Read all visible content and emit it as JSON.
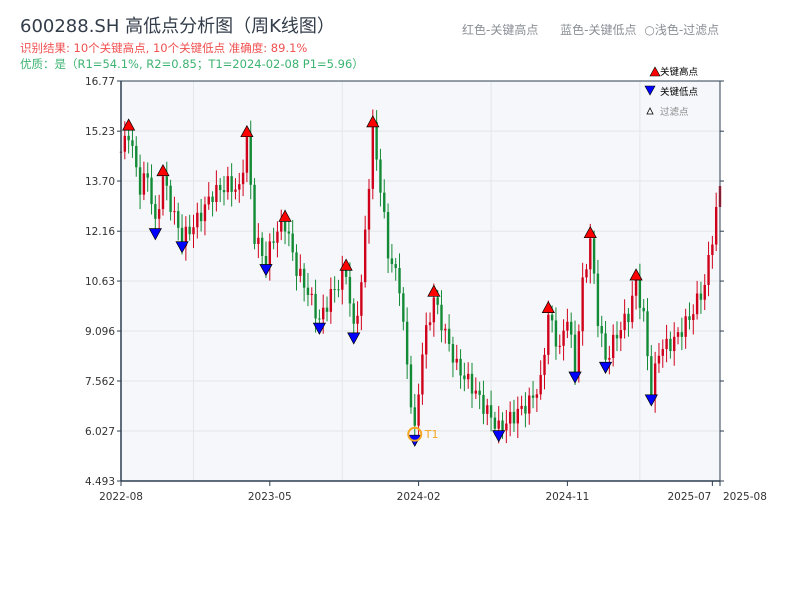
{
  "title": "600288.SH 高低点分析图（周K线图）",
  "result_line": "识别结果: 10个关键高点, 10个关键低点   准确度: 89.1%",
  "quality_line": "优质：是（R1=54.1%, R2=0.85；T1=2024-02-08 P1=5.96）",
  "hint": {
    "red": "红色-关键高点",
    "blue": "蓝色-关键低点",
    "light": "○浅色-过滤点"
  },
  "chart_data": {
    "type": "candlestick",
    "title": "600288.SH 高低点分析图（周K线图）",
    "ylim": [
      4.493,
      16.77
    ],
    "yticks": [
      "4.493",
      "6.027",
      "7.562",
      "9.096",
      "10.63",
      "12.16",
      "13.70",
      "15.23",
      "16.77"
    ],
    "ytick_values": [
      4.493,
      6.027,
      7.562,
      9.096,
      10.63,
      12.16,
      13.7,
      15.23,
      16.77
    ],
    "xticks": [
      {
        "label": "2022-08",
        "week": 0
      },
      {
        "label": "2023-05",
        "week": 39
      },
      {
        "label": "2024-02",
        "week": 78
      },
      {
        "label": "2024-11",
        "week": 117
      },
      {
        "label": "2025-07",
        "week": 155
      },
      {
        "label": "2025-08",
        "week": 157
      }
    ],
    "weeks": 158,
    "price_path_estimated": [
      [
        0,
        14.6
      ],
      [
        2,
        15.2
      ],
      [
        5,
        13.5
      ],
      [
        7,
        13.9
      ],
      [
        9,
        12.3
      ],
      [
        11,
        13.8
      ],
      [
        14,
        12.6
      ],
      [
        16,
        11.9
      ],
      [
        20,
        12.5
      ],
      [
        24,
        13.3
      ],
      [
        28,
        13.6
      ],
      [
        31,
        13.4
      ],
      [
        33,
        15.0
      ],
      [
        35,
        12.0
      ],
      [
        38,
        11.2
      ],
      [
        40,
        12.0
      ],
      [
        43,
        12.4
      ],
      [
        46,
        11.0
      ],
      [
        49,
        10.3
      ],
      [
        52,
        9.4
      ],
      [
        55,
        10.2
      ],
      [
        59,
        10.9
      ],
      [
        61,
        9.1
      ],
      [
        63,
        10.5
      ],
      [
        66,
        15.3
      ],
      [
        68,
        13.5
      ],
      [
        70,
        11.5
      ],
      [
        73,
        10.5
      ],
      [
        75,
        8.0
      ],
      [
        77,
        5.96
      ],
      [
        79,
        8.5
      ],
      [
        82,
        10.1
      ],
      [
        85,
        9.0
      ],
      [
        88,
        8.0
      ],
      [
        92,
        7.4
      ],
      [
        95,
        6.8
      ],
      [
        99,
        6.1
      ],
      [
        103,
        6.5
      ],
      [
        107,
        6.9
      ],
      [
        110,
        7.5
      ],
      [
        112,
        9.6
      ],
      [
        115,
        8.5
      ],
      [
        117,
        9.6
      ],
      [
        119,
        7.9
      ],
      [
        121,
        10.5
      ],
      [
        123,
        11.9
      ],
      [
        125,
        9.5
      ],
      [
        127,
        8.2
      ],
      [
        130,
        9.0
      ],
      [
        133,
        9.6
      ],
      [
        135,
        10.6
      ],
      [
        137,
        9.5
      ],
      [
        139,
        7.2
      ],
      [
        141,
        8.5
      ],
      [
        145,
        8.8
      ],
      [
        149,
        9.5
      ],
      [
        153,
        10.5
      ],
      [
        155,
        12.0
      ],
      [
        157,
        13.5
      ]
    ],
    "key_highs": [
      [
        2,
        15.2
      ],
      [
        11,
        13.8
      ],
      [
        33,
        15.0
      ],
      [
        43,
        12.4
      ],
      [
        59,
        10.9
      ],
      [
        66,
        15.3
      ],
      [
        82,
        10.1
      ],
      [
        112,
        9.6
      ],
      [
        123,
        11.9
      ],
      [
        135,
        10.6
      ]
    ],
    "key_lows": [
      [
        9,
        12.3
      ],
      [
        16,
        11.9
      ],
      [
        38,
        11.2
      ],
      [
        52,
        9.4
      ],
      [
        61,
        9.1
      ],
      [
        77,
        5.96
      ],
      [
        99,
        6.1
      ],
      [
        119,
        7.9
      ],
      [
        127,
        8.2
      ],
      [
        139,
        7.2
      ]
    ],
    "annotation": {
      "label": "T1",
      "week": 77,
      "price": 5.96
    },
    "legend": {
      "position": "top-right",
      "items": [
        "关键高点",
        "关键低点",
        "过滤点"
      ]
    },
    "colors": {
      "up": "#d0021b",
      "down": "#138a36",
      "high": "#ff0000",
      "low": "#0000ff",
      "t1": "#f5a623"
    }
  }
}
